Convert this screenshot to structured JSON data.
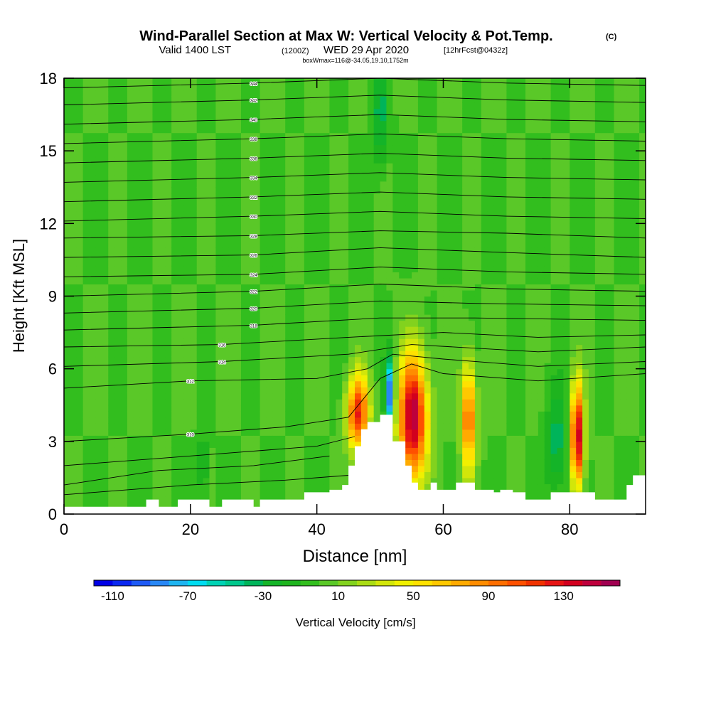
{
  "chart_data": {
    "type": "heatmap",
    "title_main": "Wind-Parallel Section at Max W: Vertical Velocity & Pot.Temp.",
    "title_copyright": "(C)",
    "subtitle_valid": "Valid 1400 LST",
    "subtitle_utc": "(1200Z)",
    "subtitle_date": "WED 29 Apr 2020",
    "subtitle_fcst": "[12hrFcst@0432z]",
    "subtitle_box": "boxWmax=116@-34.05,19.10,1752m",
    "xlabel": "Distance [nm]",
    "ylabel": "Height [Kft MSL]",
    "xlim": [
      0,
      92
    ],
    "ylim": [
      0,
      18
    ],
    "xticks": [
      "0",
      "20",
      "40",
      "60",
      "80"
    ],
    "yticks": [
      "0",
      "3",
      "6",
      "9",
      "12",
      "15",
      "18"
    ],
    "colorbar_label": "Vertical Velocity [cm/s]",
    "colorbar_ticks": [
      "-110",
      "-70",
      "-30",
      "10",
      "50",
      "90",
      "130"
    ],
    "colorbar_levels": [
      -120,
      -110,
      -100,
      -90,
      -80,
      -70,
      -60,
      -50,
      -40,
      -30,
      -20,
      -10,
      0,
      10,
      20,
      30,
      40,
      50,
      60,
      70,
      80,
      90,
      100,
      110,
      120,
      130,
      140,
      150
    ],
    "colorbar_colors": [
      "#0000e6",
      "#0a28f0",
      "#1e5af5",
      "#2887f5",
      "#1eb4f0",
      "#00dcf0",
      "#00d2b4",
      "#00c88c",
      "#00b45a",
      "#14b428",
      "#1eb41e",
      "#32be1e",
      "#5ac828",
      "#82d21e",
      "#aadc14",
      "#d2e60a",
      "#f0f000",
      "#ffe100",
      "#ffc800",
      "#ffaa00",
      "#ff8c00",
      "#ff6e00",
      "#ff5000",
      "#f03200",
      "#e61414",
      "#d2001e",
      "#be003c",
      "#a00050"
    ],
    "background_w": 0,
    "updrafts": [
      {
        "x": 46.5,
        "y": 4.2,
        "sx": 1.2,
        "sy": 1.1,
        "w": 118
      },
      {
        "x": 55.2,
        "y": 4.0,
        "sx": 1.6,
        "sy": 1.8,
        "w": 150
      },
      {
        "x": 64.0,
        "y": 4.0,
        "sx": 0.8,
        "sy": 1.6,
        "w": 102
      },
      {
        "x": 81.2,
        "y": 3.2,
        "sx": 0.7,
        "sy": 1.5,
        "w": 146
      }
    ],
    "downdrafts": [
      {
        "x": 51.5,
        "y": 5.0,
        "sx": 0.5,
        "sy": 1.0,
        "w": -95
      },
      {
        "x": 50.0,
        "y": 16.5,
        "sx": 0.8,
        "sy": 1.5,
        "w": -35
      },
      {
        "x": 78.0,
        "y": 3.0,
        "sx": 1.2,
        "sy": 1.5,
        "w": -35
      },
      {
        "x": 22.0,
        "y": 2.0,
        "sx": 0.6,
        "sy": 1.0,
        "w": -25
      }
    ],
    "terrain": [
      [
        0,
        0.3
      ],
      [
        13,
        0.3
      ],
      [
        13,
        0.6
      ],
      [
        15,
        0.6
      ],
      [
        15,
        0.3
      ],
      [
        18,
        0.3
      ],
      [
        18,
        0.6
      ],
      [
        23,
        0.6
      ],
      [
        23,
        0.3
      ],
      [
        25,
        0.3
      ],
      [
        25,
        0.6
      ],
      [
        30,
        0.6
      ],
      [
        30,
        0.3
      ],
      [
        31,
        0.3
      ],
      [
        31,
        0.6
      ],
      [
        38,
        0.6
      ],
      [
        38,
        0.9
      ],
      [
        42,
        0.9
      ],
      [
        42,
        1.0
      ],
      [
        44,
        1.0
      ],
      [
        44,
        1.2
      ],
      [
        45,
        1.2
      ],
      [
        45,
        2.0
      ],
      [
        46,
        2.0
      ],
      [
        46,
        2.8
      ],
      [
        47,
        2.8
      ],
      [
        47,
        3.5
      ],
      [
        48,
        3.5
      ],
      [
        48,
        3.8
      ],
      [
        50,
        3.8
      ],
      [
        50,
        4.1
      ],
      [
        52,
        4.1
      ],
      [
        52,
        3.0
      ],
      [
        54,
        3.0
      ],
      [
        54,
        2.0
      ],
      [
        55,
        2.0
      ],
      [
        55,
        1.3
      ],
      [
        56,
        1.3
      ],
      [
        56,
        1.0
      ],
      [
        58,
        1.0
      ],
      [
        58,
        1.3
      ],
      [
        59,
        1.3
      ],
      [
        59,
        1.0
      ],
      [
        62,
        1.0
      ],
      [
        62,
        1.3
      ],
      [
        65,
        1.3
      ],
      [
        65,
        1.0
      ],
      [
        68,
        1.0
      ],
      [
        68,
        0.9
      ],
      [
        69,
        0.9
      ],
      [
        69,
        1.0
      ],
      [
        71,
        1.0
      ],
      [
        71,
        0.9
      ],
      [
        73,
        0.9
      ],
      [
        73,
        0.6
      ],
      [
        77,
        0.6
      ],
      [
        77,
        0.9
      ],
      [
        84,
        0.9
      ],
      [
        84,
        0.6
      ],
      [
        89,
        0.6
      ],
      [
        89,
        1.2
      ],
      [
        90,
        1.2
      ],
      [
        90,
        1.6
      ],
      [
        92,
        1.6
      ]
    ],
    "isentropes": [
      {
        "label": "",
        "pts": [
          [
            0,
            0.8
          ],
          [
            20,
            1.2
          ],
          [
            35,
            1.4
          ],
          [
            45,
            1.6
          ]
        ]
      },
      {
        "label": "",
        "pts": [
          [
            0,
            1.2
          ],
          [
            15,
            1.8
          ],
          [
            30,
            2.0
          ],
          [
            42,
            2.4
          ]
        ]
      },
      {
        "label": "",
        "pts": [
          [
            0,
            2.0
          ],
          [
            20,
            2.4
          ],
          [
            40,
            2.8
          ],
          [
            46,
            3.2
          ]
        ]
      },
      {
        "label": "310",
        "pts": [
          [
            0,
            3.0
          ],
          [
            20,
            3.3
          ],
          [
            35,
            3.6
          ],
          [
            45,
            4.0
          ],
          [
            50,
            5.6
          ],
          [
            55,
            6.2
          ],
          [
            60,
            5.8
          ],
          [
            75,
            5.5
          ],
          [
            92,
            5.8
          ]
        ]
      },
      {
        "label": "312",
        "pts": [
          [
            0,
            5.2
          ],
          [
            20,
            5.5
          ],
          [
            40,
            5.6
          ],
          [
            48,
            6.0
          ],
          [
            52,
            6.6
          ],
          [
            60,
            6.4
          ],
          [
            75,
            6.1
          ],
          [
            92,
            6.3
          ]
        ]
      },
      {
        "label": "314",
        "pts": [
          [
            0,
            6.1
          ],
          [
            25,
            6.3
          ],
          [
            45,
            6.6
          ],
          [
            55,
            7.0
          ],
          [
            75,
            6.7
          ],
          [
            92,
            6.9
          ]
        ]
      },
      {
        "label": "316",
        "pts": [
          [
            0,
            6.9
          ],
          [
            25,
            7.0
          ],
          [
            45,
            7.3
          ],
          [
            60,
            7.5
          ],
          [
            75,
            7.3
          ],
          [
            92,
            7.4
          ]
        ]
      },
      {
        "label": "318",
        "pts": [
          [
            0,
            7.6
          ],
          [
            30,
            7.8
          ],
          [
            50,
            8.1
          ],
          [
            65,
            8.1
          ],
          [
            92,
            8.0
          ]
        ]
      },
      {
        "label": "320",
        "pts": [
          [
            0,
            8.3
          ],
          [
            30,
            8.5
          ],
          [
            50,
            8.8
          ],
          [
            65,
            8.7
          ],
          [
            92,
            8.6
          ]
        ]
      },
      {
        "label": "322",
        "pts": [
          [
            0,
            9.0
          ],
          [
            30,
            9.2
          ],
          [
            50,
            9.5
          ],
          [
            70,
            9.3
          ],
          [
            92,
            9.2
          ]
        ]
      },
      {
        "label": "324",
        "pts": [
          [
            0,
            9.8
          ],
          [
            30,
            9.9
          ],
          [
            50,
            10.2
          ],
          [
            70,
            10.0
          ],
          [
            92,
            9.9
          ]
        ]
      },
      {
        "label": "326",
        "pts": [
          [
            0,
            10.6
          ],
          [
            30,
            10.7
          ],
          [
            50,
            11.0
          ],
          [
            70,
            10.8
          ],
          [
            92,
            10.6
          ]
        ]
      },
      {
        "label": "328",
        "pts": [
          [
            0,
            11.4
          ],
          [
            30,
            11.5
          ],
          [
            50,
            11.7
          ],
          [
            70,
            11.6
          ],
          [
            92,
            11.4
          ]
        ]
      },
      {
        "label": "330",
        "pts": [
          [
            0,
            12.1
          ],
          [
            30,
            12.3
          ],
          [
            50,
            12.5
          ],
          [
            70,
            12.3
          ],
          [
            92,
            12.2
          ]
        ]
      },
      {
        "label": "332",
        "pts": [
          [
            0,
            12.9
          ],
          [
            30,
            13.1
          ],
          [
            50,
            13.3
          ],
          [
            70,
            13.1
          ],
          [
            92,
            13.0
          ]
        ]
      },
      {
        "label": "334",
        "pts": [
          [
            0,
            13.7
          ],
          [
            30,
            13.9
          ],
          [
            50,
            14.1
          ],
          [
            70,
            13.9
          ],
          [
            92,
            13.8
          ]
        ]
      },
      {
        "label": "336",
        "pts": [
          [
            0,
            14.5
          ],
          [
            30,
            14.7
          ],
          [
            50,
            14.9
          ],
          [
            70,
            14.7
          ],
          [
            92,
            14.6
          ]
        ]
      },
      {
        "label": "338",
        "pts": [
          [
            0,
            15.3
          ],
          [
            30,
            15.5
          ],
          [
            50,
            15.7
          ],
          [
            70,
            15.5
          ],
          [
            92,
            15.4
          ]
        ]
      },
      {
        "label": "340",
        "pts": [
          [
            0,
            16.1
          ],
          [
            30,
            16.3
          ],
          [
            50,
            16.5
          ],
          [
            70,
            16.3
          ],
          [
            92,
            16.2
          ]
        ]
      },
      {
        "label": "342",
        "pts": [
          [
            0,
            16.9
          ],
          [
            30,
            17.1
          ],
          [
            50,
            17.3
          ],
          [
            70,
            17.1
          ],
          [
            92,
            17.0
          ]
        ]
      },
      {
        "label": "344",
        "pts": [
          [
            0,
            17.6
          ],
          [
            30,
            17.8
          ],
          [
            50,
            18.0
          ],
          [
            70,
            17.8
          ],
          [
            92,
            17.7
          ]
        ]
      }
    ]
  }
}
